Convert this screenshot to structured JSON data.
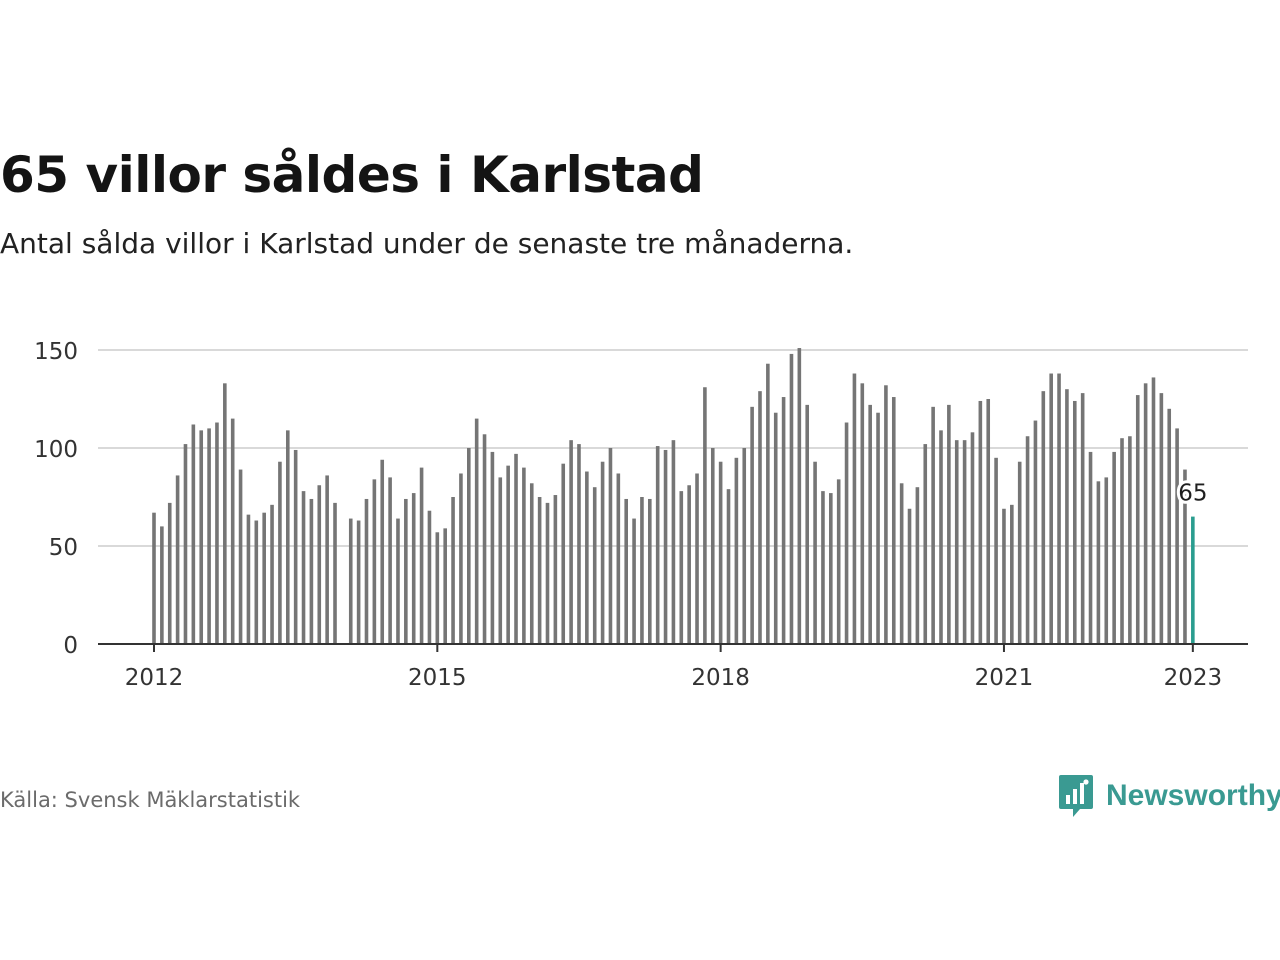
{
  "header": {
    "title": "65 villor såldes i Karlstad",
    "subtitle": "Antal sålda villor i Karlstad under de senaste tre månaderna."
  },
  "footer": {
    "source": "Källa: Svensk Mäklarstatistik",
    "brand": "Newsworthy",
    "brand_icon": "newsworthy-logo-icon"
  },
  "colors": {
    "bar": "#757575",
    "highlight": "#2a9d8f",
    "grid": "#d9d9d9",
    "axis": "#333333",
    "brand": "#3a9a92"
  },
  "chart_data": {
    "type": "bar",
    "x_start": "2012-01",
    "x_end": "2023-01",
    "x_ticks": [
      "2012",
      "2015",
      "2018",
      "2021",
      "2023"
    ],
    "y_ticks": [
      0,
      50,
      100,
      150
    ],
    "ylim": [
      0,
      150
    ],
    "grid": true,
    "highlight_label": "65",
    "values": [
      67,
      60,
      72,
      86,
      102,
      112,
      109,
      110,
      113,
      133,
      115,
      89,
      66,
      63,
      67,
      71,
      93,
      109,
      99,
      78,
      74,
      81,
      86,
      72,
      null,
      64,
      63,
      74,
      84,
      94,
      85,
      64,
      74,
      77,
      90,
      68,
      57,
      59,
      75,
      87,
      100,
      115,
      107,
      98,
      85,
      91,
      97,
      90,
      82,
      75,
      72,
      76,
      92,
      104,
      102,
      88,
      80,
      93,
      100,
      87,
      74,
      64,
      75,
      74,
      101,
      99,
      104,
      78,
      81,
      87,
      131,
      100,
      93,
      79,
      95,
      100,
      121,
      129,
      143,
      118,
      126,
      148,
      151,
      122,
      93,
      78,
      77,
      84,
      113,
      138,
      133,
      122,
      118,
      132,
      126,
      82,
      69,
      80,
      102,
      121,
      109,
      122,
      104,
      104,
      108,
      124,
      125,
      95,
      69,
      71,
      93,
      106,
      114,
      129,
      138,
      138,
      130,
      124,
      128,
      98,
      83,
      85,
      98,
      105,
      106,
      127,
      133,
      136,
      128,
      120,
      110,
      89,
      65
    ]
  }
}
